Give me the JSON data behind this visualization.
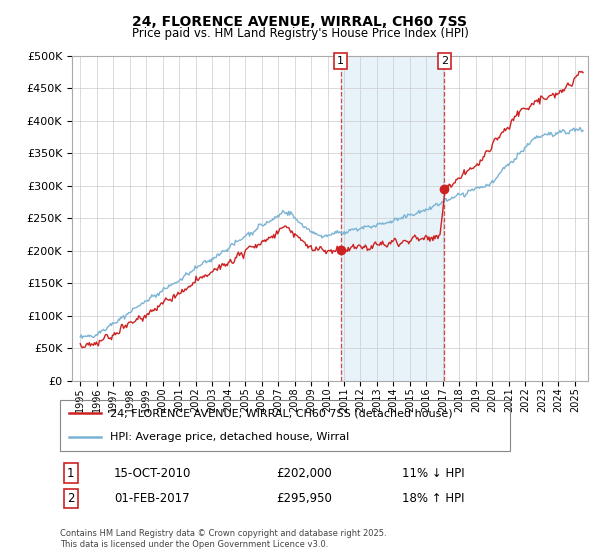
{
  "title": "24, FLORENCE AVENUE, WIRRAL, CH60 7SS",
  "subtitle": "Price paid vs. HM Land Registry's House Price Index (HPI)",
  "legend_line1": "24, FLORENCE AVENUE, WIRRAL, CH60 7SS (detached house)",
  "legend_line2": "HPI: Average price, detached house, Wirral",
  "sale1_date": "15-OCT-2010",
  "sale1_price": "£202,000",
  "sale1_hpi": "11% ↓ HPI",
  "sale2_date": "01-FEB-2017",
  "sale2_price": "£295,950",
  "sale2_hpi": "18% ↑ HPI",
  "copyright": "Contains HM Land Registry data © Crown copyright and database right 2025.\nThis data is licensed under the Open Government Licence v3.0.",
  "hpi_color": "#7ab3d4",
  "price_color": "#cc2222",
  "shade_color": "#daeaf5",
  "ylim": [
    0,
    500000
  ],
  "yticks": [
    0,
    50000,
    100000,
    150000,
    200000,
    250000,
    300000,
    350000,
    400000,
    450000,
    500000
  ],
  "background": "#ffffff",
  "grid_color": "#cccccc"
}
